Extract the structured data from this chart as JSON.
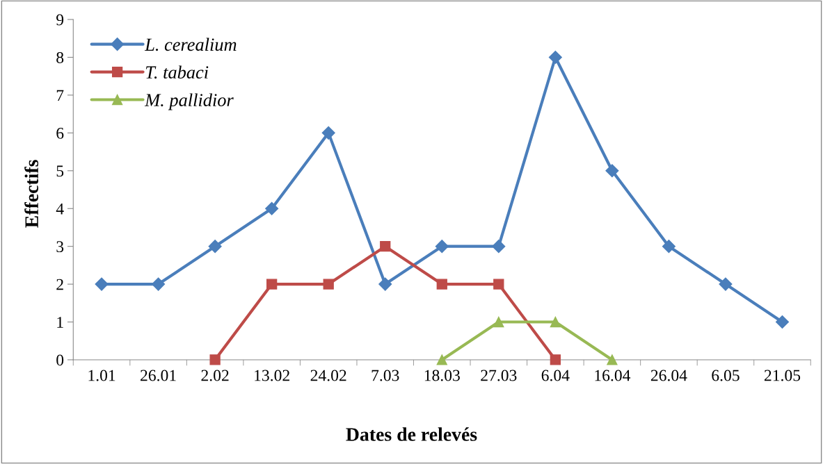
{
  "chart_data": {
    "type": "line",
    "xlabel": "Dates de relevés",
    "ylabel": "Effectifs",
    "categories": [
      "1.01",
      "26.01",
      "2.02",
      "13.02",
      "24.02",
      "7.03",
      "18.03",
      "27.03",
      "6.04",
      "16.04",
      "26.04",
      "6.05",
      "21.05"
    ],
    "series": [
      {
        "name": "L. cerealium",
        "color": "#4a7ebb",
        "marker": "diamond",
        "values": [
          2,
          2,
          3,
          4,
          6,
          2,
          3,
          3,
          8,
          5,
          3,
          2,
          1
        ]
      },
      {
        "name": "T. tabaci",
        "color": "#be4b48",
        "marker": "square",
        "values": [
          null,
          null,
          0,
          2,
          2,
          3,
          2,
          2,
          0,
          null,
          null,
          null,
          null
        ]
      },
      {
        "name": "M. pallidior",
        "color": "#98b954",
        "marker": "triangle",
        "values": [
          null,
          null,
          null,
          null,
          null,
          null,
          0,
          1,
          1,
          0,
          null,
          null,
          null
        ]
      }
    ],
    "ylim": [
      0,
      9
    ],
    "yticks": [
      0,
      1,
      2,
      3,
      4,
      5,
      6,
      7,
      8,
      9
    ],
    "grid": false,
    "legend": "top left",
    "line_style": "solid"
  }
}
